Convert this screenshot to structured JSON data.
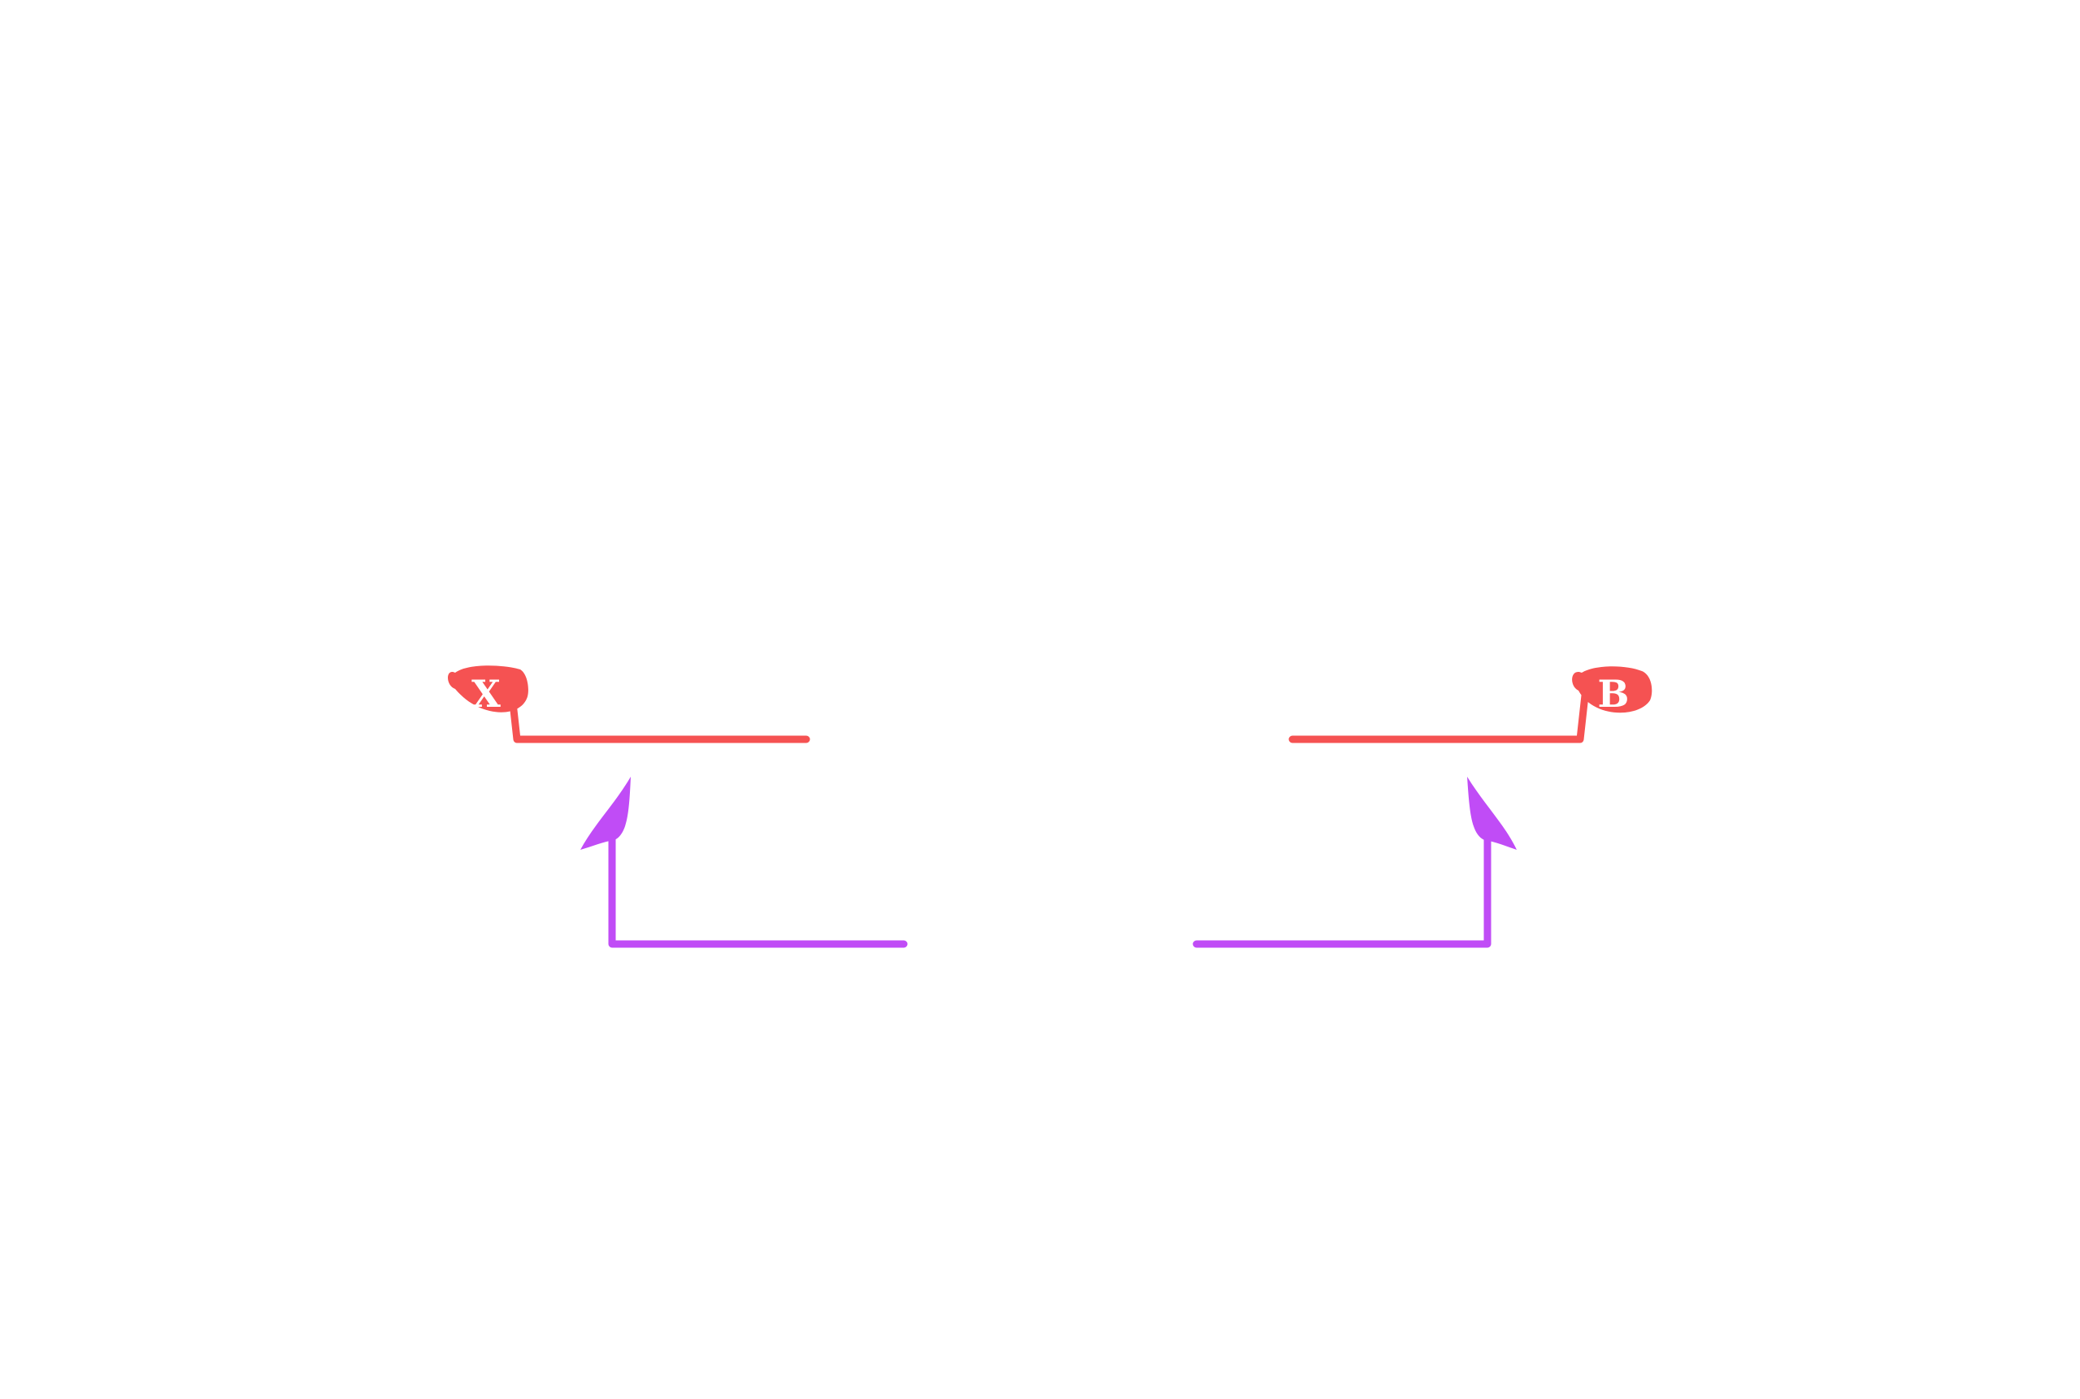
{
  "diagram": {
    "background": "#ffffff",
    "colors": {
      "red": "#f55252",
      "purple": "#c04cf6",
      "label_text": "#ffffff"
    },
    "nodes": [
      {
        "id": "x",
        "label": "X",
        "shape": "rounded-pill",
        "color": "red"
      },
      {
        "id": "b",
        "label": "B",
        "shape": "rounded-pill",
        "color": "red"
      }
    ],
    "connectors": [
      {
        "id": "left-red-line",
        "color": "red",
        "attached_to": "x",
        "arrowhead": false
      },
      {
        "id": "right-red-line",
        "color": "red",
        "attached_to": "b",
        "arrowhead": false
      },
      {
        "id": "left-purple-arrow",
        "color": "purple",
        "arrowhead": true,
        "direction": "up"
      },
      {
        "id": "right-purple-arrow",
        "color": "purple",
        "arrowhead": true,
        "direction": "up"
      }
    ]
  }
}
